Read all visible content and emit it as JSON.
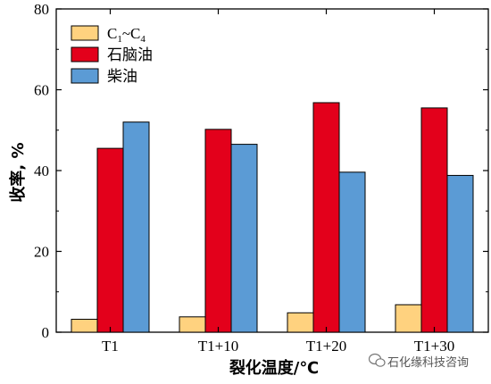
{
  "chart_data": {
    "type": "bar",
    "categories": [
      "T1",
      "T1+10",
      "T1+20",
      "T1+30"
    ],
    "series": [
      {
        "name": "C1~C4",
        "name_main": "C",
        "name_sub1": "1",
        "name_sep": "~C",
        "name_sub2": "4",
        "color": "#FFD27F",
        "values": [
          3.2,
          3.8,
          4.8,
          6.8
        ]
      },
      {
        "name": "石脑油",
        "color": "#E3001B",
        "values": [
          45.5,
          50.2,
          56.8,
          55.5
        ]
      },
      {
        "name": "柴油",
        "color": "#5B9BD5",
        "values": [
          52.0,
          46.5,
          39.6,
          38.8
        ]
      }
    ],
    "xlabel": "裂化温度/℃",
    "ylabel": "收率, %",
    "ylim": [
      0,
      80
    ],
    "yticks": [
      "0",
      "20",
      "40",
      "60",
      "80"
    ],
    "legend_position": "top-left",
    "grid": false
  },
  "watermark": {
    "icon": "wechat-icon",
    "text": "石化缘科技咨询"
  }
}
